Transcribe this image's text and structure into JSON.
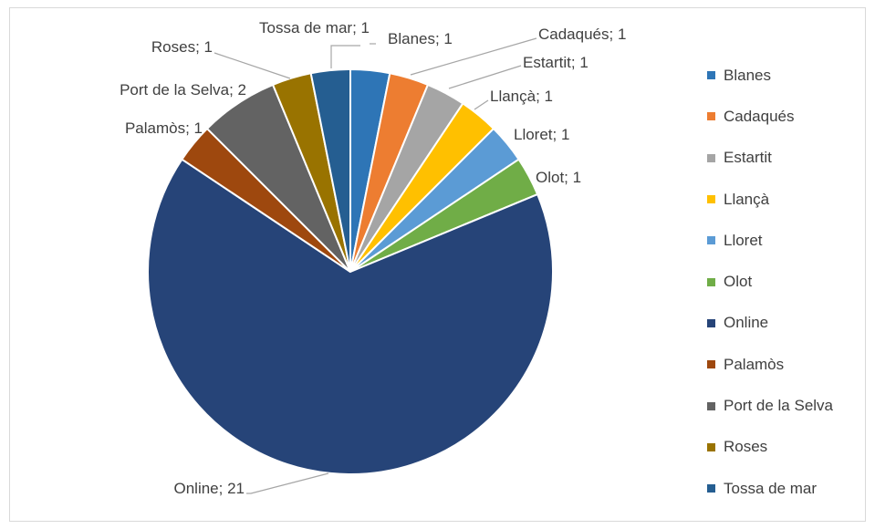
{
  "chart_data": {
    "type": "pie",
    "title": "",
    "legend_position": "right",
    "slices": [
      {
        "label": "Blanes",
        "value": 1,
        "color": "#2e75b6",
        "data_label": "Blanes; 1"
      },
      {
        "label": "Cadaqués",
        "value": 1,
        "color": "#ed7d31",
        "data_label": "Cadaqués; 1"
      },
      {
        "label": "Estartit",
        "value": 1,
        "color": "#a5a5a5",
        "data_label": "Estartit; 1"
      },
      {
        "label": "Llançà",
        "value": 1,
        "color": "#ffc000",
        "data_label": "Llançà; 1"
      },
      {
        "label": "Lloret",
        "value": 1,
        "color": "#5b9bd5",
        "data_label": "Lloret; 1"
      },
      {
        "label": "Olot",
        "value": 1,
        "color": "#70ad47",
        "data_label": "Olot; 1"
      },
      {
        "label": "Online",
        "value": 21,
        "color": "#264478",
        "data_label": "Online; 21"
      },
      {
        "label": "Palamòs",
        "value": 1,
        "color": "#9e480e",
        "data_label": "Palamòs; 1"
      },
      {
        "label": "Port de la Selva",
        "value": 2,
        "color": "#636363",
        "data_label": "Port de la Selva; 2"
      },
      {
        "label": "Roses",
        "value": 1,
        "color": "#997300",
        "data_label": "Roses; 1"
      },
      {
        "label": "Tossa de mar",
        "value": 1,
        "color": "#255e91",
        "data_label": "Tossa de mar; 1"
      }
    ]
  }
}
